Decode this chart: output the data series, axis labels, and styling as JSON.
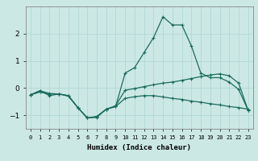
{
  "xlabel": "Humidex (Indice chaleur)",
  "background_color": "#cce8e4",
  "grid_color": "#b0d8d4",
  "line_color": "#1a6b5e",
  "x_values": [
    0,
    1,
    2,
    3,
    4,
    5,
    6,
    7,
    8,
    9,
    10,
    11,
    12,
    13,
    14,
    15,
    16,
    17,
    18,
    19,
    20,
    21,
    22,
    23
  ],
  "line1": [
    -0.25,
    -0.15,
    -0.22,
    -0.22,
    -0.3,
    -0.72,
    -1.1,
    -1.08,
    -0.78,
    -0.68,
    -0.38,
    -0.32,
    -0.28,
    -0.28,
    -0.33,
    -0.38,
    -0.42,
    -0.48,
    -0.52,
    -0.58,
    -0.62,
    -0.68,
    -0.72,
    -0.78
  ],
  "line2": [
    -0.25,
    -0.1,
    -0.28,
    -0.22,
    -0.28,
    -0.72,
    -1.1,
    -1.05,
    -0.78,
    -0.68,
    0.55,
    0.75,
    1.3,
    1.85,
    2.62,
    2.32,
    2.32,
    1.55,
    0.55,
    0.38,
    0.38,
    0.22,
    -0.05,
    -0.82
  ],
  "line3": [
    -0.25,
    -0.1,
    -0.2,
    -0.22,
    -0.28,
    -0.72,
    -1.1,
    -1.05,
    -0.78,
    -0.65,
    -0.08,
    -0.02,
    0.05,
    0.12,
    0.18,
    0.22,
    0.28,
    0.35,
    0.42,
    0.48,
    0.52,
    0.45,
    0.18,
    -0.82
  ],
  "ylim": [
    -1.5,
    3.0
  ],
  "yticks": [
    -1,
    0,
    1,
    2
  ],
  "xlim": [
    -0.5,
    23.5
  ]
}
